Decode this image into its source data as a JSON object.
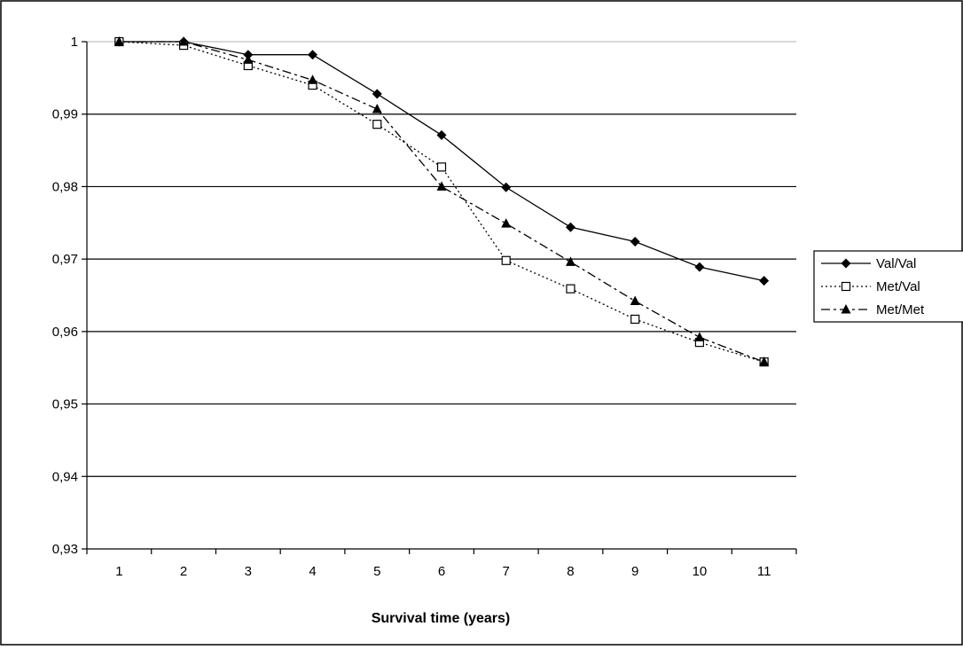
{
  "chart_data": {
    "type": "line",
    "title": "",
    "xlabel": "Survival time (years)",
    "ylabel": "",
    "categories": [
      "1",
      "2",
      "3",
      "4",
      "5",
      "6",
      "7",
      "8",
      "9",
      "10",
      "11"
    ],
    "ylim": [
      0.93,
      1.0
    ],
    "yticks": [
      "0,93",
      "0,94",
      "0,95",
      "0,96",
      "0,97",
      "0,98",
      "0,99",
      "1"
    ],
    "grid": true,
    "legend_position": "right",
    "series": [
      {
        "name": "Val/Val",
        "line_style": "solid",
        "marker": "diamond-filled",
        "values": [
          1.0,
          1.0,
          0.9982,
          0.9982,
          0.9928,
          0.9871,
          0.9799,
          0.9744,
          0.9724,
          0.9689,
          0.967
        ]
      },
      {
        "name": "Met/Val",
        "line_style": "dotted",
        "marker": "square-open",
        "values": [
          1.0,
          0.9995,
          0.9967,
          0.994,
          0.9886,
          0.9827,
          0.9698,
          0.9659,
          0.9617,
          0.9585,
          0.9558
        ]
      },
      {
        "name": "Met/Met",
        "line_style": "dash-dot",
        "marker": "triangle-filled",
        "values": [
          1.0,
          1.0,
          0.9975,
          0.9947,
          0.9907,
          0.98,
          0.9749,
          0.9696,
          0.9642,
          0.9592,
          0.9558
        ]
      }
    ]
  }
}
